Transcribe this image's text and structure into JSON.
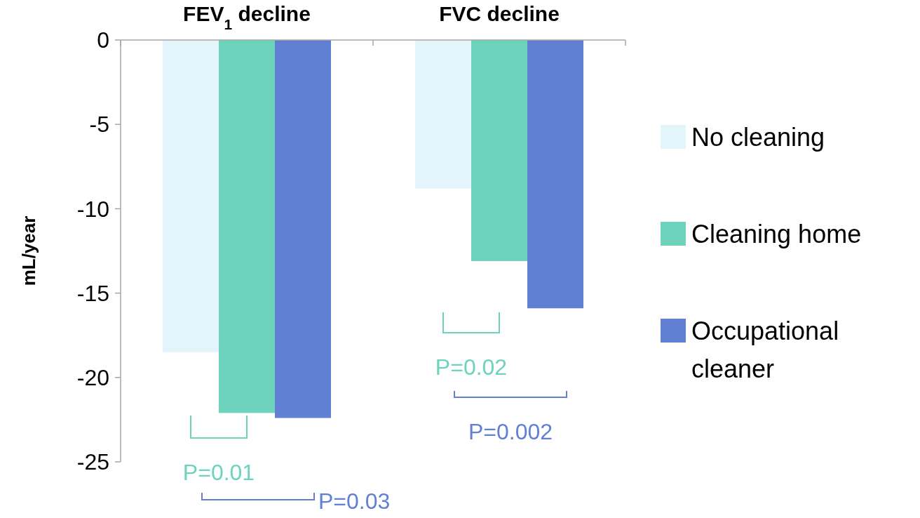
{
  "chart_data": {
    "type": "bar",
    "ylabel": "mL/year",
    "categories": [
      "FEV$_{1}$ decline",
      "FVC decline"
    ],
    "series": [
      {
        "name": "No cleaning",
        "color": "#e3f4fb",
        "values": [
          -18.5,
          -8.8
        ]
      },
      {
        "name": "Cleaning home",
        "color": "#6dd3bd",
        "values": [
          -22.1,
          -13.1
        ]
      },
      {
        "name": "Occupational cleaner",
        "color": "#617fd3",
        "values": [
          -22.4,
          -15.9
        ]
      }
    ],
    "ylim": [
      -25,
      0
    ],
    "yticks": [
      0,
      -5,
      -10,
      -15,
      -20,
      -25
    ],
    "grid": false,
    "legend": "right",
    "annotations": [
      "P=0.01",
      "P=0.03",
      "P=0.02",
      "P=0.002"
    ]
  }
}
